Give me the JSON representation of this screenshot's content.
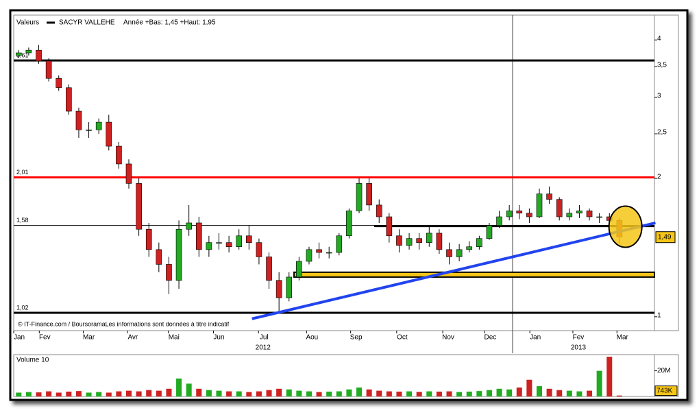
{
  "chart_data": {
    "type": "candlestick",
    "header": {
      "label": "Valeurs",
      "name": "SACYR VALLEHE",
      "range": "Année +Bas: 1,45 +Haut: 1,95"
    },
    "footer": "© IT-Finance.com / BoursoramaLes informations sont données à titre indicatif",
    "log_scale": true,
    "xlim": [
      -0.5,
      63.5
    ],
    "ylim": [
      0.933,
      4.53
    ],
    "yticks": [
      1,
      2,
      {
        "value": 2.5,
        "label": "2,5"
      },
      3,
      {
        "value": 3.5,
        "label": "3,5"
      },
      4
    ],
    "xticks": [
      {
        "value": 0.05,
        "label": "Jan"
      },
      {
        "value": 2.6,
        "label": "Fev"
      },
      {
        "value": 7,
        "label": "Mar"
      },
      {
        "value": 11.4,
        "label": "Avr"
      },
      {
        "value": 15.5,
        "label": "Mai"
      },
      {
        "value": 20,
        "label": "Jun"
      },
      {
        "value": 24.5,
        "label": "Jul"
      },
      {
        "value": 29.3,
        "label": "Aou"
      },
      {
        "value": 33.7,
        "label": "Sep"
      },
      {
        "value": 38.3,
        "label": "Oct"
      },
      {
        "value": 42.9,
        "label": "Nov"
      },
      {
        "value": 47.1,
        "label": "Dec"
      },
      {
        "value": 51.6,
        "label": "Jan"
      },
      {
        "value": 55.9,
        "label": "Fev"
      },
      {
        "value": 60.3,
        "label": "Mar"
      }
    ],
    "years": [
      {
        "value": 24.4,
        "label": "2012"
      },
      {
        "value": 55.9,
        "label": "2013"
      }
    ],
    "up_color": "#22aa22",
    "down_color": "#cc2222",
    "open": [
      3.7,
      3.75,
      3.8,
      3.6,
      3.3,
      3.15,
      2.8,
      2.55,
      2.55,
      2.65,
      2.35,
      2.15,
      1.95,
      1.55,
      1.4,
      1.3,
      1.2,
      1.55,
      1.6,
      1.4,
      1.45,
      1.45,
      1.42,
      1.5,
      1.45,
      1.35,
      1.2,
      1.1,
      1.22,
      1.32,
      1.4,
      1.38,
      1.38,
      1.5,
      1.7,
      1.95,
      1.75,
      1.65,
      1.5,
      1.43,
      1.48,
      1.45,
      1.52,
      1.4,
      1.35,
      1.4,
      1.42,
      1.48,
      1.58,
      1.65,
      1.7,
      1.68,
      1.65,
      1.85,
      1.8,
      1.65,
      1.68,
      1.7,
      1.65,
      1.65,
      1.62
    ],
    "high": [
      3.8,
      3.85,
      3.9,
      3.65,
      3.35,
      3.2,
      2.85,
      2.65,
      2.7,
      2.75,
      2.4,
      2.2,
      2.0,
      1.6,
      1.45,
      1.35,
      1.62,
      1.75,
      1.65,
      1.5,
      1.52,
      1.5,
      1.55,
      1.58,
      1.48,
      1.38,
      1.25,
      1.25,
      1.35,
      1.42,
      1.45,
      1.42,
      1.52,
      1.72,
      2.0,
      2.0,
      1.8,
      1.68,
      1.55,
      1.52,
      1.52,
      1.58,
      1.55,
      1.45,
      1.44,
      1.46,
      1.5,
      1.6,
      1.7,
      1.75,
      1.75,
      1.72,
      1.9,
      1.92,
      1.82,
      1.72,
      1.75,
      1.72,
      1.68,
      1.68,
      1.64
    ],
    "low": [
      3.65,
      3.7,
      3.55,
      3.25,
      3.1,
      2.75,
      2.45,
      2.45,
      2.5,
      2.3,
      2.1,
      1.9,
      1.5,
      1.35,
      1.25,
      1.12,
      1.15,
      1.5,
      1.35,
      1.35,
      1.4,
      1.38,
      1.4,
      1.4,
      1.3,
      1.15,
      1.03,
      1.08,
      1.2,
      1.3,
      1.34,
      1.34,
      1.36,
      1.48,
      1.68,
      1.7,
      1.6,
      1.45,
      1.38,
      1.4,
      1.4,
      1.42,
      1.37,
      1.3,
      1.32,
      1.38,
      1.4,
      1.47,
      1.56,
      1.62,
      1.63,
      1.6,
      1.64,
      1.76,
      1.62,
      1.62,
      1.64,
      1.62,
      1.6,
      1.58,
      1.44
    ],
    "close": [
      3.75,
      3.8,
      3.6,
      3.3,
      3.15,
      2.8,
      2.55,
      2.55,
      2.65,
      2.35,
      2.15,
      1.95,
      1.55,
      1.4,
      1.3,
      1.2,
      1.55,
      1.6,
      1.4,
      1.45,
      1.45,
      1.42,
      1.5,
      1.45,
      1.35,
      1.2,
      1.1,
      1.22,
      1.32,
      1.4,
      1.38,
      1.38,
      1.5,
      1.7,
      1.95,
      1.75,
      1.65,
      1.5,
      1.43,
      1.48,
      1.45,
      1.52,
      1.4,
      1.35,
      1.4,
      1.42,
      1.48,
      1.58,
      1.65,
      1.7,
      1.68,
      1.65,
      1.85,
      1.8,
      1.65,
      1.68,
      1.7,
      1.65,
      1.65,
      1.62,
      1.49
    ],
    "last_price": {
      "value": 1.49,
      "label": "1,49"
    },
    "levels": [
      {
        "value": 3.61,
        "label": "3,61",
        "color": "#000000"
      },
      {
        "value": 2.01,
        "label": "2,01",
        "color": "#ff0000"
      },
      {
        "value": 1.58,
        "label": "1,58",
        "color": "#000000"
      },
      {
        "value": 1.02,
        "label": "1,02",
        "color": "#000000"
      }
    ],
    "support": {
      "x": [
        35.5,
        63.5
      ],
      "y": [
        1.575,
        1.575
      ],
      "color": "#000000"
    },
    "band": {
      "x": [
        27.5,
        63.5
      ],
      "y": [
        1.22,
        1.25
      ],
      "color": "#f5c518"
    },
    "trendline": {
      "x": [
        23.3,
        63.6
      ],
      "y": [
        0.99,
        1.6
      ],
      "color": "#2244ee"
    },
    "highlight": {
      "x": 60.6,
      "y": 1.57,
      "color": "#f5c518"
    },
    "volume": {
      "title": "Volume 10",
      "ylim": [
        0,
        32600000
      ],
      "yticks": [
        {
          "value": 20000000,
          "label": "20M"
        }
      ],
      "values": [
        3000000,
        3500000,
        3200000,
        4000000,
        3000000,
        3800000,
        4200000,
        3000000,
        3500000,
        3000000,
        4000000,
        4500000,
        4000000,
        5000000,
        4500000,
        6000000,
        14000000,
        10000000,
        6000000,
        5000000,
        4500000,
        4000000,
        4000000,
        3500000,
        4000000,
        5000000,
        6000000,
        5500000,
        4500000,
        4000000,
        3500000,
        3800000,
        4000000,
        5500000,
        7000000,
        5500000,
        4500000,
        4000000,
        3800000,
        4000000,
        3600000,
        4000000,
        3800000,
        4000000,
        3500000,
        3800000,
        4200000,
        5000000,
        6000000,
        5500000,
        7000000,
        13000000,
        8000000,
        6000000,
        5000000,
        4500000,
        4000000,
        4500000,
        20000000,
        31000000,
        743000
      ],
      "last_label": {
        "value": 743000,
        "label": "743K"
      }
    }
  }
}
